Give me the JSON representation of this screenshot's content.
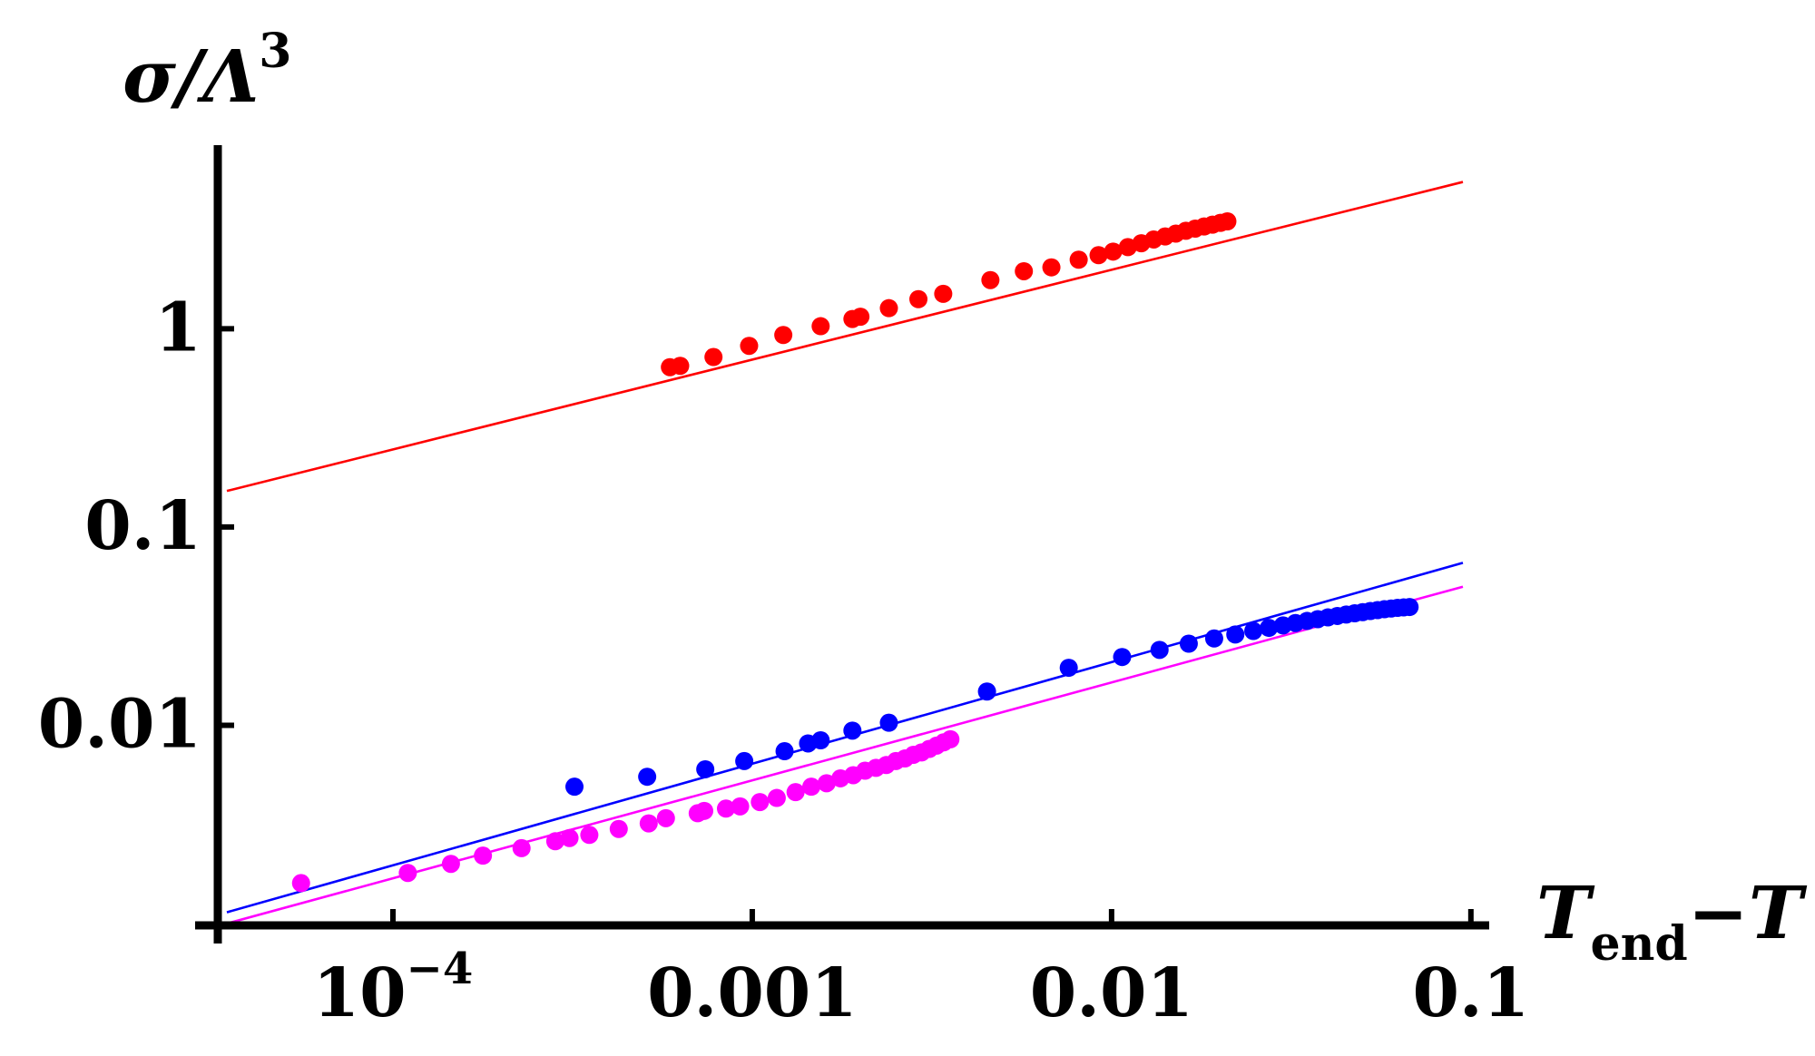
{
  "chart_data": {
    "type": "scatter",
    "title": "",
    "xscale": "log",
    "yscale": "log",
    "xlim": [
      3.45e-05,
      0.095
    ],
    "ylim": [
      0.001,
      7.2
    ],
    "ylabel": {
      "main": "σ/Λ",
      "sup": "3"
    },
    "xlabel": {
      "main": "T",
      "sub": "end",
      "rest": "−T"
    },
    "x_ticks": [
      {
        "value": 0.0001,
        "base": "10",
        "exp": "−4"
      },
      {
        "value": 0.001,
        "text": "0.001"
      },
      {
        "value": 0.01,
        "text": "0.01"
      },
      {
        "value": 0.1,
        "text": "0.1"
      }
    ],
    "y_ticks": [
      {
        "value": 1,
        "text": "1"
      },
      {
        "value": 0.1,
        "text": "0.1"
      },
      {
        "value": 0.01,
        "text": "0.01"
      }
    ],
    "series": [
      {
        "color": "#ff0000",
        "fit": {
          "x1": 3.45e-05,
          "y1": 0.152,
          "x2": 0.095,
          "y2": 5.5
        },
        "x": [
          0.00059,
          0.00063,
          0.00078,
          0.00098,
          0.00122,
          0.00155,
          0.0019,
          0.002,
          0.0024,
          0.0029,
          0.0034,
          0.0046,
          0.0057,
          0.0068,
          0.0081,
          0.0092,
          0.0101,
          0.0111,
          0.0121,
          0.0131,
          0.0141,
          0.0151,
          0.0161,
          0.0171,
          0.0181,
          0.0191,
          0.0201,
          0.021
        ],
        "y": [
          0.64,
          0.65,
          0.72,
          0.82,
          0.93,
          1.03,
          1.12,
          1.15,
          1.27,
          1.41,
          1.5,
          1.76,
          1.95,
          2.04,
          2.23,
          2.35,
          2.45,
          2.58,
          2.7,
          2.82,
          2.92,
          3.02,
          3.12,
          3.2,
          3.28,
          3.35,
          3.42,
          3.48
        ]
      },
      {
        "color": "#0000ff",
        "fit": {
          "x1": 3.45e-05,
          "y1": 0.00114,
          "x2": 0.095,
          "y2": 0.066
        },
        "x": [
          0.00032,
          0.00051,
          0.00074,
          0.00095,
          0.00123,
          0.00143,
          0.00155,
          0.0019,
          0.0024,
          0.0045,
          0.0076,
          0.0107,
          0.0136,
          0.0164,
          0.0193,
          0.0221,
          0.0248,
          0.0274,
          0.03,
          0.0325,
          0.035,
          0.0375,
          0.04,
          0.0425,
          0.045,
          0.0475,
          0.05,
          0.0525,
          0.055,
          0.0575,
          0.06,
          0.0625,
          0.065,
          0.0675
        ],
        "y": [
          0.0049,
          0.0055,
          0.006,
          0.0066,
          0.0074,
          0.0081,
          0.0084,
          0.0094,
          0.0103,
          0.0148,
          0.0195,
          0.0221,
          0.024,
          0.0258,
          0.0274,
          0.0287,
          0.0299,
          0.031,
          0.0319,
          0.0328,
          0.0336,
          0.0343,
          0.035,
          0.0356,
          0.0362,
          0.0367,
          0.0372,
          0.0377,
          0.0381,
          0.0385,
          0.0388,
          0.0391,
          0.0393,
          0.0395
        ]
      },
      {
        "color": "#ff00ff",
        "fit": {
          "x1": 3.45e-05,
          "y1": 0.001,
          "x2": 0.095,
          "y2": 0.05
        },
        "x": [
          5.55e-05,
          0.00011,
          0.000145,
          0.000178,
          0.000228,
          0.000283,
          0.00031,
          0.000352,
          0.000425,
          0.000515,
          0.000575,
          0.000705,
          0.000735,
          0.000845,
          0.000925,
          0.00105,
          0.00117,
          0.00132,
          0.00146,
          0.00161,
          0.00176,
          0.00191,
          0.00206,
          0.00221,
          0.00236,
          0.00251,
          0.00266,
          0.00281,
          0.00296,
          0.00311,
          0.00326,
          0.00341,
          0.00356
        ],
        "y": [
          0.0016,
          0.0018,
          0.002,
          0.0022,
          0.0024,
          0.0026,
          0.0027,
          0.0028,
          0.003,
          0.0032,
          0.0034,
          0.0036,
          0.0037,
          0.0038,
          0.0039,
          0.0041,
          0.0043,
          0.0046,
          0.0049,
          0.0051,
          0.0054,
          0.0056,
          0.0059,
          0.0061,
          0.0063,
          0.0066,
          0.0068,
          0.0071,
          0.0073,
          0.0076,
          0.0079,
          0.0082,
          0.0085
        ]
      }
    ]
  }
}
